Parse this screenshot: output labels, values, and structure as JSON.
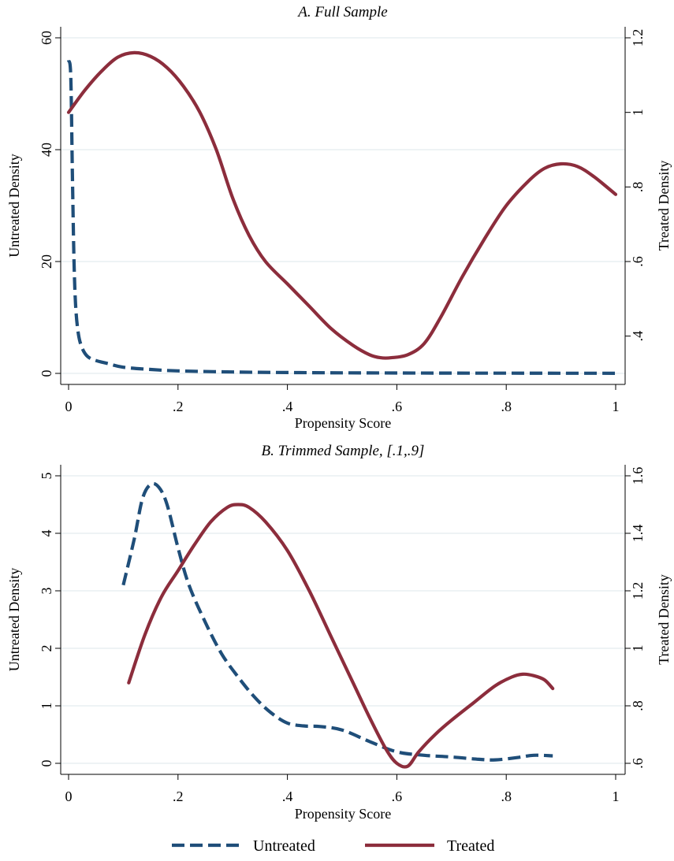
{
  "colors": {
    "untreated": "#1f4e79",
    "treated": "#8c2d3c",
    "grid": "#e3ecef",
    "axis": "#000000",
    "background": "#ffffff"
  },
  "legend": {
    "position": "bottom",
    "items": [
      {
        "label": "Untreated",
        "style": "dashed",
        "color_key": "untreated"
      },
      {
        "label": "Treated",
        "style": "solid",
        "color_key": "treated"
      }
    ]
  },
  "chart_data": [
    {
      "type": "line",
      "title": "A. Full Sample",
      "xlabel": "Propensity Score",
      "ylabel_left": "Untreated Density",
      "ylabel_right": "Treated Density",
      "xlim": [
        0,
        1
      ],
      "ylim_left": [
        0,
        60
      ],
      "ylim_right": [
        0.3,
        1.2
      ],
      "x_ticks": [
        0,
        0.2,
        0.4,
        0.6,
        0.8,
        1
      ],
      "x_tick_labels": [
        "0",
        ".2",
        ".4",
        ".6",
        ".8",
        "1"
      ],
      "y_left_ticks": [
        0,
        20,
        40,
        60
      ],
      "y_left_tick_labels": [
        "0",
        "20",
        "40",
        "60"
      ],
      "y_right_ticks": [
        0.4,
        0.6,
        0.8,
        1.0,
        1.2
      ],
      "y_right_tick_labels": [
        ".4",
        ".6",
        ".8",
        "1",
        "1.2"
      ],
      "grid": true,
      "series": [
        {
          "name": "Untreated",
          "axis": "left",
          "style": "dashed",
          "points": [
            [
              0.0,
              56
            ],
            [
              0.004,
              53
            ],
            [
              0.007,
              35
            ],
            [
              0.01,
              20
            ],
            [
              0.013,
              12
            ],
            [
              0.018,
              7
            ],
            [
              0.025,
              4.5
            ],
            [
              0.035,
              3
            ],
            [
              0.05,
              2.3
            ],
            [
              0.07,
              1.8
            ],
            [
              0.1,
              1.1
            ],
            [
              0.15,
              0.7
            ],
            [
              0.2,
              0.45
            ],
            [
              0.3,
              0.25
            ],
            [
              0.4,
              0.15
            ],
            [
              0.5,
              0.1
            ],
            [
              0.6,
              0.07
            ],
            [
              0.7,
              0.05
            ],
            [
              0.8,
              0.04
            ],
            [
              0.9,
              0.03
            ],
            [
              1.0,
              0.02
            ]
          ]
        },
        {
          "name": "Treated",
          "axis": "right",
          "style": "solid",
          "points": [
            [
              0.0,
              1.0
            ],
            [
              0.03,
              1.06
            ],
            [
              0.06,
              1.11
            ],
            [
              0.09,
              1.148
            ],
            [
              0.12,
              1.16
            ],
            [
              0.15,
              1.15
            ],
            [
              0.18,
              1.12
            ],
            [
              0.21,
              1.07
            ],
            [
              0.24,
              1.0
            ],
            [
              0.27,
              0.9
            ],
            [
              0.3,
              0.77
            ],
            [
              0.33,
              0.67
            ],
            [
              0.36,
              0.6
            ],
            [
              0.4,
              0.54
            ],
            [
              0.44,
              0.48
            ],
            [
              0.48,
              0.42
            ],
            [
              0.52,
              0.375
            ],
            [
              0.55,
              0.35
            ],
            [
              0.57,
              0.342
            ],
            [
              0.59,
              0.342
            ],
            [
              0.62,
              0.35
            ],
            [
              0.65,
              0.38
            ],
            [
              0.68,
              0.45
            ],
            [
              0.72,
              0.56
            ],
            [
              0.76,
              0.66
            ],
            [
              0.8,
              0.75
            ],
            [
              0.84,
              0.815
            ],
            [
              0.87,
              0.85
            ],
            [
              0.9,
              0.862
            ],
            [
              0.93,
              0.855
            ],
            [
              0.96,
              0.828
            ],
            [
              1.0,
              0.78
            ]
          ]
        }
      ]
    },
    {
      "type": "line",
      "title": "B. Trimmed Sample, [.1,.9]",
      "xlabel": "Propensity Score",
      "ylabel_left": "Untreated Density",
      "ylabel_right": "Treated Density",
      "xlim": [
        0,
        1
      ],
      "ylim_left": [
        0,
        5
      ],
      "ylim_right": [
        0.6,
        1.6
      ],
      "x_ticks": [
        0,
        0.2,
        0.4,
        0.6,
        0.8,
        1
      ],
      "x_tick_labels": [
        "0",
        ".2",
        ".4",
        ".6",
        ".8",
        "1"
      ],
      "y_left_ticks": [
        0,
        1,
        2,
        3,
        4,
        5
      ],
      "y_left_tick_labels": [
        "0",
        "1",
        "2",
        "3",
        "4",
        "5"
      ],
      "y_right_ticks": [
        0.6,
        0.8,
        1.0,
        1.2,
        1.4,
        1.6
      ],
      "y_right_tick_labels": [
        ".6",
        ".8",
        "1",
        "1.2",
        "1.4",
        "1.6"
      ],
      "grid": true,
      "series": [
        {
          "name": "Untreated",
          "axis": "left",
          "style": "dashed",
          "points": [
            [
              0.1,
              3.1
            ],
            [
              0.12,
              3.9
            ],
            [
              0.135,
              4.6
            ],
            [
              0.15,
              4.85
            ],
            [
              0.165,
              4.8
            ],
            [
              0.18,
              4.5
            ],
            [
              0.2,
              3.75
            ],
            [
              0.22,
              3.1
            ],
            [
              0.25,
              2.45
            ],
            [
              0.28,
              1.9
            ],
            [
              0.31,
              1.5
            ],
            [
              0.34,
              1.15
            ],
            [
              0.37,
              0.88
            ],
            [
              0.4,
              0.7
            ],
            [
              0.43,
              0.65
            ],
            [
              0.46,
              0.64
            ],
            [
              0.5,
              0.58
            ],
            [
              0.55,
              0.38
            ],
            [
              0.6,
              0.2
            ],
            [
              0.65,
              0.14
            ],
            [
              0.7,
              0.11
            ],
            [
              0.75,
              0.07
            ],
            [
              0.78,
              0.06
            ],
            [
              0.82,
              0.1
            ],
            [
              0.85,
              0.14
            ],
            [
              0.885,
              0.13
            ]
          ]
        },
        {
          "name": "Treated",
          "axis": "right",
          "style": "solid",
          "points": [
            [
              0.11,
              0.88
            ],
            [
              0.14,
              1.05
            ],
            [
              0.17,
              1.18
            ],
            [
              0.2,
              1.27
            ],
            [
              0.23,
              1.36
            ],
            [
              0.26,
              1.44
            ],
            [
              0.29,
              1.49
            ],
            [
              0.31,
              1.5
            ],
            [
              0.33,
              1.49
            ],
            [
              0.36,
              1.44
            ],
            [
              0.4,
              1.34
            ],
            [
              0.44,
              1.2
            ],
            [
              0.48,
              1.04
            ],
            [
              0.52,
              0.88
            ],
            [
              0.55,
              0.76
            ],
            [
              0.58,
              0.65
            ],
            [
              0.6,
              0.6
            ],
            [
              0.62,
              0.59
            ],
            [
              0.64,
              0.64
            ],
            [
              0.67,
              0.7
            ],
            [
              0.7,
              0.75
            ],
            [
              0.74,
              0.81
            ],
            [
              0.78,
              0.87
            ],
            [
              0.81,
              0.9
            ],
            [
              0.83,
              0.91
            ],
            [
              0.85,
              0.905
            ],
            [
              0.87,
              0.89
            ],
            [
              0.885,
              0.86
            ]
          ]
        }
      ]
    }
  ]
}
